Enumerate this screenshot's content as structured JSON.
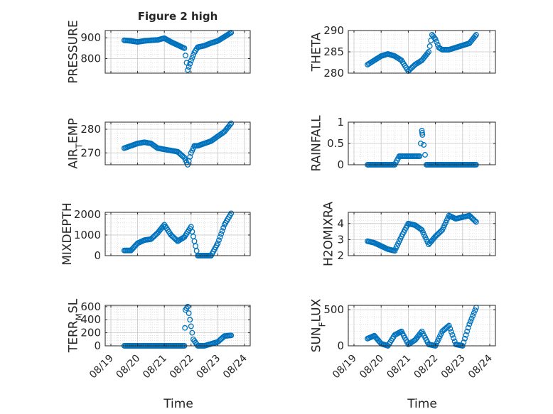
{
  "figure": {
    "title": "Figure 2 high",
    "marker_color": "#0072BD",
    "x_ticks": [
      "08/19",
      "08/20",
      "08/21",
      "08/22",
      "08/23",
      "08/24"
    ],
    "xlabel": "Time"
  },
  "chart_data": [
    {
      "type": "scatter",
      "ylabel": "PRESSURE",
      "ylim": [
        730,
        935
      ],
      "yticks": [
        800,
        900
      ],
      "x": [
        "08/19 12:00",
        "08/19 18:00",
        "08/20 00:00",
        "08/20 06:00",
        "08/20 12:00",
        "08/20 18:00",
        "08/21 00:00",
        "08/21 06:00",
        "08/21 12:00",
        "08/21 18:00",
        "08/21 21:00",
        "08/22 00:00",
        "08/22 03:00",
        "08/22 06:00",
        "08/22 12:00",
        "08/22 18:00",
        "08/23 00:00",
        "08/23 06:00",
        "08/23 12:00"
      ],
      "y": [
        888,
        885,
        880,
        885,
        888,
        890,
        898,
        880,
        865,
        850,
        745,
        790,
        830,
        855,
        862,
        875,
        885,
        905,
        925
      ]
    },
    {
      "type": "scatter",
      "ylabel": "THETA",
      "ylim": [
        280,
        290
      ],
      "yticks": [
        280,
        285,
        290
      ],
      "x": [
        "08/19 12:00",
        "08/19 18:00",
        "08/20 00:00",
        "08/20 06:00",
        "08/20 12:00",
        "08/20 18:00",
        "08/21 00:00",
        "08/21 06:00",
        "08/21 12:00",
        "08/21 18:00",
        "08/21 21:00",
        "08/22 00:00",
        "08/22 03:00",
        "08/22 06:00",
        "08/22 12:00",
        "08/22 18:00",
        "08/23 00:00",
        "08/23 06:00",
        "08/23 12:00"
      ],
      "y": [
        282,
        283,
        284,
        284.5,
        284,
        283,
        280.5,
        282,
        283,
        285,
        289,
        288,
        286,
        285.5,
        285.5,
        286,
        286.5,
        287,
        289
      ]
    },
    {
      "type": "scatter",
      "ylabel": "AIR_TEMP",
      "ylim": [
        265,
        283
      ],
      "yticks": [
        270,
        280
      ],
      "x": [
        "08/19 12:00",
        "08/19 18:00",
        "08/20 00:00",
        "08/20 06:00",
        "08/20 12:00",
        "08/20 18:00",
        "08/21 00:00",
        "08/21 06:00",
        "08/21 12:00",
        "08/21 18:00",
        "08/21 21:00",
        "08/22 00:00",
        "08/22 03:00",
        "08/22 06:00",
        "08/22 12:00",
        "08/22 18:00",
        "08/23 00:00",
        "08/23 06:00",
        "08/23 12:00"
      ],
      "y": [
        272,
        273,
        274,
        274.5,
        274,
        272,
        271.5,
        271,
        270.5,
        268,
        265,
        270,
        273,
        273,
        274,
        275,
        277,
        279,
        282.5
      ]
    },
    {
      "type": "scatter",
      "ylabel": "RAINFALL",
      "ylim": [
        0,
        1
      ],
      "yticks": [
        0,
        0.5,
        1
      ],
      "x": [
        "08/19 12:00",
        "08/20 00:00",
        "08/20 12:00",
        "08/20 16:00",
        "08/20 20:00",
        "08/21 00:00",
        "08/21 04:00",
        "08/21 08:00",
        "08/21 10:00",
        "08/21 12:00",
        "08/21 12:30",
        "08/21 16:00",
        "08/22 00:00",
        "08/22 12:00",
        "08/23 00:00",
        "08/23 12:00"
      ],
      "y": [
        0,
        0,
        0,
        0.2,
        0.2,
        0.2,
        0.2,
        0.2,
        0.2,
        0.8,
        0.7,
        0,
        0,
        0,
        0,
        0
      ]
    },
    {
      "type": "scatter",
      "ylabel": "MIXDEPTH",
      "ylim": [
        0,
        2100
      ],
      "yticks": [
        0,
        1000,
        2000
      ],
      "x": [
        "08/19 12:00",
        "08/19 18:00",
        "08/20 00:00",
        "08/20 06:00",
        "08/20 12:00",
        "08/20 18:00",
        "08/21 00:00",
        "08/21 06:00",
        "08/21 12:00",
        "08/21 18:00",
        "08/22 00:00",
        "08/22 06:00",
        "08/22 09:00",
        "08/22 12:00",
        "08/22 18:00",
        "08/23 00:00",
        "08/23 06:00",
        "08/23 12:00"
      ],
      "y": [
        250,
        250,
        600,
        750,
        800,
        1100,
        1500,
        1000,
        700,
        900,
        1400,
        0,
        0,
        0,
        0,
        600,
        1500,
        2050
      ]
    },
    {
      "type": "scatter",
      "ylabel": "H2OMIXRA",
      "ylim": [
        2,
        4.7
      ],
      "yticks": [
        2,
        3,
        4
      ],
      "x": [
        "08/19 12:00",
        "08/19 18:00",
        "08/20 00:00",
        "08/20 06:00",
        "08/20 12:00",
        "08/20 18:00",
        "08/21 00:00",
        "08/21 06:00",
        "08/21 12:00",
        "08/21 18:00",
        "08/22 00:00",
        "08/22 06:00",
        "08/22 12:00",
        "08/22 18:00",
        "08/23 00:00",
        "08/23 06:00",
        "08/23 12:00"
      ],
      "y": [
        2.9,
        2.8,
        2.6,
        2.4,
        2.3,
        3.2,
        4,
        3.9,
        3.6,
        2.7,
        3.2,
        3.6,
        4.5,
        4.3,
        4.4,
        4.5,
        4.1
      ]
    },
    {
      "type": "scatter",
      "ylabel": "TERR_MSL",
      "ylim": [
        0,
        620
      ],
      "yticks": [
        0,
        200,
        400,
        600
      ],
      "x": [
        "08/19 12:00",
        "08/20 00:00",
        "08/20 12:00",
        "08/21 00:00",
        "08/21 12:00",
        "08/21 18:00",
        "08/21 19:00",
        "08/21 21:00",
        "08/22 00:00",
        "08/22 02:00",
        "08/22 06:00",
        "08/22 12:00",
        "08/22 18:00",
        "08/23 00:00",
        "08/23 06:00",
        "08/23 12:00"
      ],
      "y": [
        0,
        0,
        0,
        0,
        0,
        0,
        550,
        600,
        300,
        100,
        0,
        0,
        30,
        60,
        150,
        160
      ]
    },
    {
      "type": "scatter",
      "ylabel": "SUN_FLUX",
      "ylim": [
        0,
        560
      ],
      "yticks": [
        0,
        500
      ],
      "x": [
        "08/19 12:00",
        "08/19 18:00",
        "08/20 00:00",
        "08/20 06:00",
        "08/20 12:00",
        "08/20 18:00",
        "08/21 00:00",
        "08/21 06:00",
        "08/21 12:00",
        "08/21 18:00",
        "08/22 00:00",
        "08/22 06:00",
        "08/22 12:00",
        "08/22 18:00",
        "08/23 00:00",
        "08/23 06:00",
        "08/23 12:00"
      ],
      "y": [
        100,
        140,
        30,
        0,
        150,
        200,
        20,
        80,
        200,
        20,
        0,
        200,
        280,
        20,
        0,
        300,
        530
      ]
    }
  ]
}
